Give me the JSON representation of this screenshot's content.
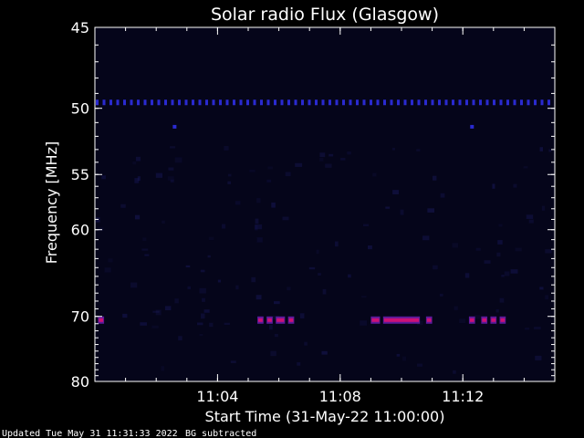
{
  "chart_data": {
    "type": "heatmap",
    "title": "Solar radio Flux (Glasgow)",
    "xlabel": "Start Time (31-May-22 11:00:00)",
    "ylabel": "Frequency [MHz]",
    "x_unit": "minutes after 11:00:00",
    "xlim": [
      0,
      15
    ],
    "ylim": [
      45,
      80
    ],
    "x_tick_values": [
      4,
      8,
      12
    ],
    "x_tick_labels": [
      "11:04",
      "11:08",
      "11:12"
    ],
    "y_tick_values": [
      45,
      50,
      55,
      60,
      70,
      80
    ],
    "y_tick_labels": [
      "45",
      "50",
      "55",
      "60",
      "70",
      "80"
    ],
    "y_scale": "reciprocal",
    "colors": {
      "background": "#000000",
      "plot_background": "#05051a",
      "low": "#1a1a5e",
      "mid": "#2a2ad0",
      "high": "#cc1177",
      "hot": "#ff2266",
      "axes": "#ffffff"
    },
    "features": [
      {
        "label": "50 MHz interference line",
        "freq_mhz": 49.6,
        "x_start": 0,
        "x_end": 15,
        "intensity": "mid",
        "pattern": "dashed"
      },
      {
        "label": "70 MHz bursts",
        "freq_mhz": 70.5,
        "intensity": "high",
        "segments": [
          [
            0.1,
            0.3
          ],
          [
            5.3,
            5.5
          ],
          [
            5.6,
            5.8
          ],
          [
            5.9,
            6.2
          ],
          [
            6.3,
            6.5
          ],
          [
            9.0,
            9.3
          ],
          [
            9.4,
            10.6
          ],
          [
            10.8,
            11.0
          ],
          [
            12.2,
            12.4
          ],
          [
            12.6,
            12.8
          ],
          [
            12.9,
            13.1
          ],
          [
            13.2,
            13.4
          ]
        ]
      },
      {
        "label": "isolated spots",
        "freq_mhz": 51.3,
        "points_x": [
          2.6,
          12.3
        ],
        "intensity": "mid"
      }
    ]
  },
  "footer": {
    "updated": "Updated Tue May 31 11:31:33 2022",
    "note": "BG subtracted"
  }
}
